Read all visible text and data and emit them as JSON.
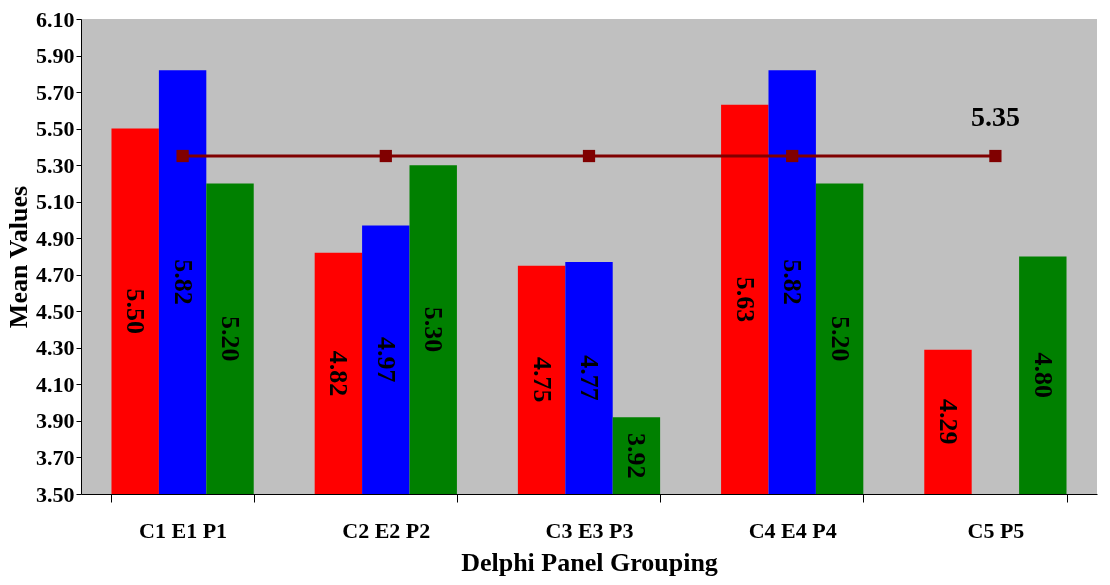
{
  "chart_data": {
    "type": "bar",
    "xlabel": "Delphi Panel Grouping",
    "ylabel": "Mean Values",
    "categories": [
      "C1  E1  P1",
      "C2  E2  P2",
      "C3  E3  P3",
      "C4  E4  P4",
      "C5           P5"
    ],
    "series": [
      {
        "color": "#ff0000",
        "values": [
          5.5,
          4.82,
          4.75,
          5.63,
          4.29
        ],
        "value_labels": [
          "5.50",
          "4.82",
          "4.75",
          "5.63",
          "4.29"
        ]
      },
      {
        "color": "#0000ff",
        "values": [
          5.82,
          4.97,
          4.77,
          5.82,
          null
        ],
        "value_labels": [
          "5.82",
          "4.97",
          "4.77",
          "5.82",
          null
        ]
      },
      {
        "color": "#008000",
        "values": [
          5.2,
          5.3,
          3.92,
          5.2,
          4.8
        ],
        "value_labels": [
          "5.20",
          "5.30",
          "3.92",
          "5.20",
          "4.80"
        ]
      },
      {
        "type": "line",
        "color": "#800000",
        "marker": "square",
        "values": [
          5.35,
          5.35,
          5.35,
          5.35,
          5.35
        ],
        "value_labels": [
          null,
          null,
          null,
          null,
          "5.35"
        ]
      }
    ],
    "grid": false,
    "legend": false,
    "ylim": [
      3.5,
      6.1
    ],
    "yticks": [
      {
        "value": 3.5,
        "label": "3.50"
      },
      {
        "value": 3.7,
        "label": "3.70"
      },
      {
        "value": 3.9,
        "label": "3.90"
      },
      {
        "value": 4.1,
        "label": "4.10"
      },
      {
        "value": 4.3,
        "label": "4.30"
      },
      {
        "value": 4.5,
        "label": "4.50"
      },
      {
        "value": 4.7,
        "label": "4.70"
      },
      {
        "value": 4.9,
        "label": "4.90"
      },
      {
        "value": 5.1,
        "label": "5.10"
      },
      {
        "value": 5.3,
        "label": "5.30"
      },
      {
        "value": 5.5,
        "label": "5.50"
      },
      {
        "value": 5.7,
        "label": "5.70"
      },
      {
        "value": 5.9,
        "label": "5.90"
      },
      {
        "value": 6.1,
        "label": "6.10"
      }
    ]
  }
}
